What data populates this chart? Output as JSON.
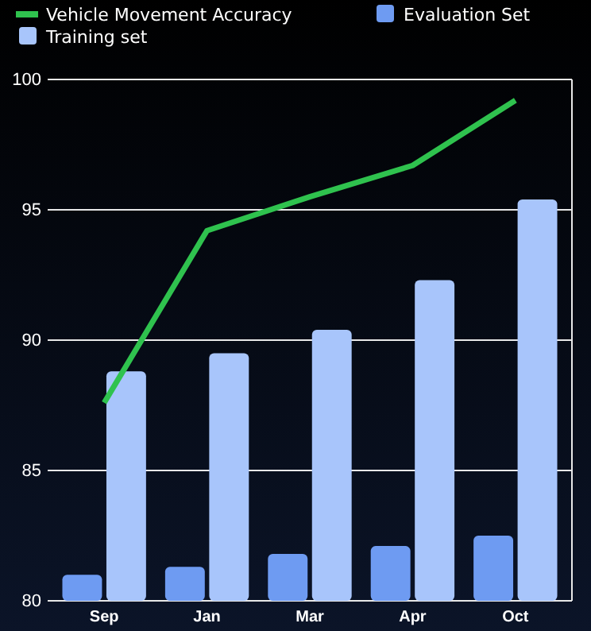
{
  "chart_data": {
    "type": "bar",
    "categories": [
      "Sep",
      "Jan",
      "Mar",
      "Apr",
      "Oct"
    ],
    "series": [
      {
        "name": "Vehicle Movement Accuracy",
        "type": "line",
        "color": "#2fc24e",
        "values": [
          87.6,
          94.2,
          95.5,
          96.7,
          99.2
        ]
      },
      {
        "name": "Evaluation Set",
        "color": "#6e9bf2",
        "values": [
          81.0,
          81.3,
          81.8,
          82.1,
          82.5
        ]
      },
      {
        "name": "Training set",
        "color": "#a8c5fb",
        "values": [
          88.8,
          89.5,
          90.4,
          92.3,
          95.4
        ]
      }
    ],
    "ylim": [
      80,
      100
    ],
    "yticks": [
      80,
      85,
      90,
      95,
      100
    ],
    "grid": "y",
    "legend": "top",
    "marker": "none"
  }
}
